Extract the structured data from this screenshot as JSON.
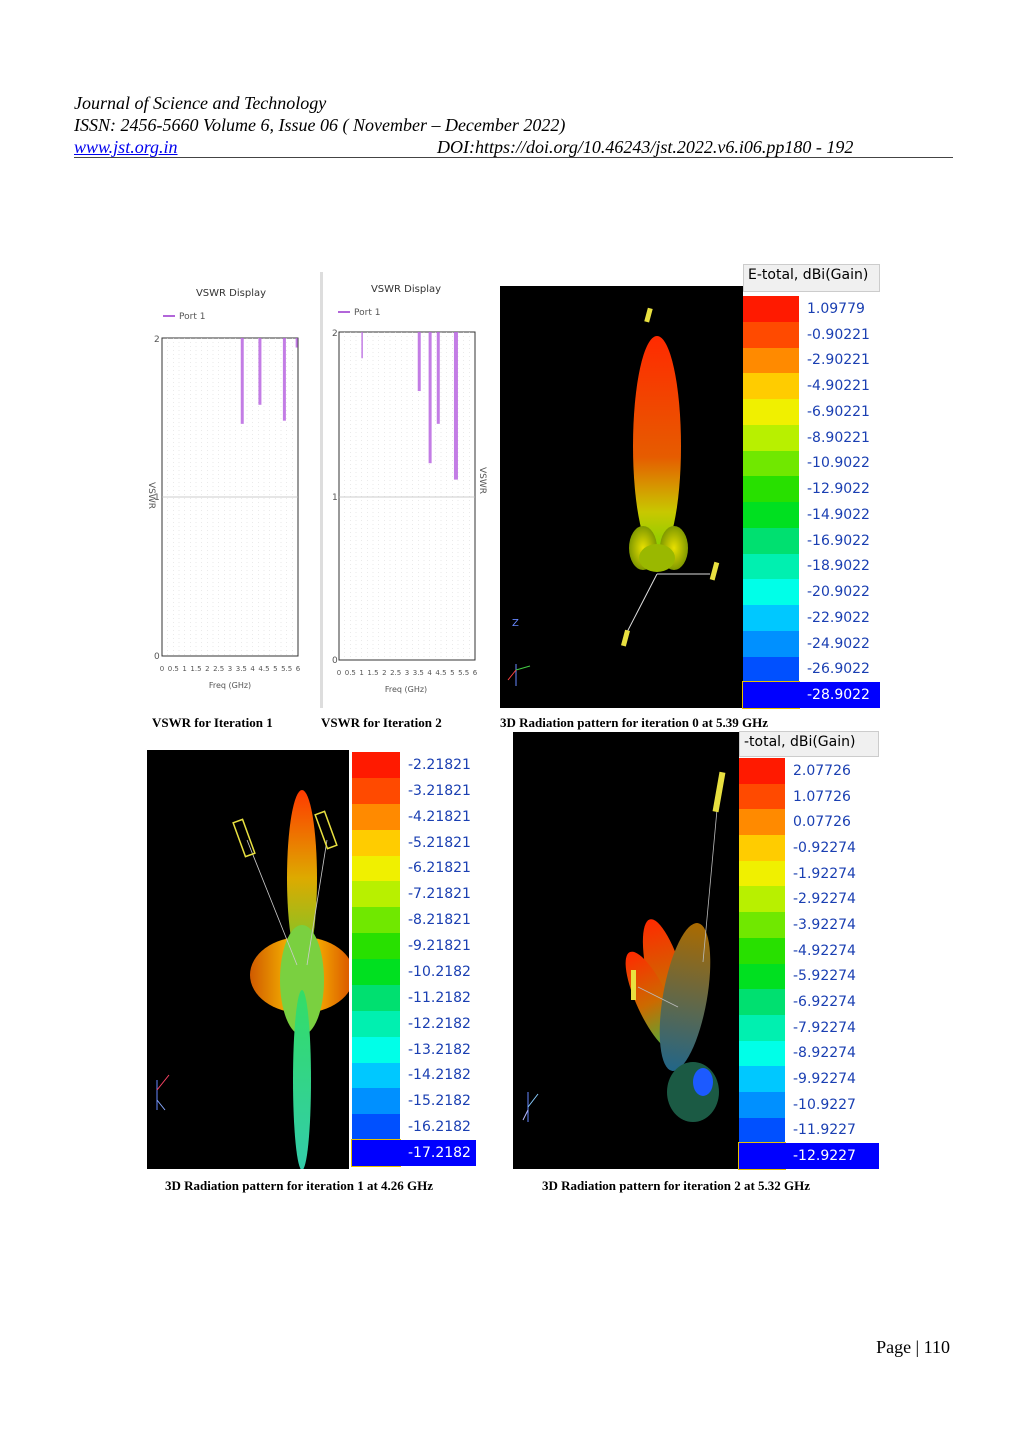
{
  "header": {
    "journal": "Journal of Science and Technology",
    "issn": "ISSN: 2456-5660 Volume 6, Issue 06 ( November – December 2022)",
    "website": "www.jst.org.in",
    "doi": "DOI:https://doi.org/10.46243/jst.2022.v6.i06.pp180 - 192"
  },
  "figures": {
    "vswr1": {
      "caption": "VSWR for Iteration 1",
      "title": "VSWR Display",
      "legend": "Port 1",
      "ylabel": "VSWR",
      "xlabel": "Freq (GHz)",
      "yticks": [
        "2",
        "1",
        "0"
      ],
      "xticks": [
        "0",
        "0.5",
        "1",
        "1.5",
        "2",
        "2.5",
        "3",
        "3.5",
        "4",
        "4.5",
        "5",
        "5.5",
        "6"
      ]
    },
    "vswr2": {
      "caption": "VSWR for Iteration 2",
      "title": "VSWR Display",
      "legend": "Port 1",
      "ylabel": "VSWR",
      "xlabel": "Freq (GHz)",
      "yticks": [
        "2",
        "1",
        "0"
      ],
      "xticks": [
        "0",
        "0.5",
        "1",
        "1.5",
        "2",
        "2.5",
        "3",
        "3.5",
        "4",
        "4.5",
        "5",
        "5.5",
        "6"
      ]
    },
    "rad0": {
      "caption": "3D Radiation pattern for iteration 0 at 5.39 GHz",
      "legend_title": "E-total, dBi(Gain)",
      "values": [
        "1.09779",
        "-0.90221",
        "-2.90221",
        "-4.90221",
        "-6.90221",
        "-8.90221",
        "-10.9022",
        "-12.9022",
        "-14.9022",
        "-16.9022",
        "-18.9022",
        "-20.9022",
        "-22.9022",
        "-24.9022",
        "-26.9022",
        "-28.9022"
      ],
      "axis_label": "Z"
    },
    "rad1": {
      "caption": "3D Radiation pattern for iteration 1 at 4.26 GHz",
      "values": [
        "-2.21821",
        "-3.21821",
        "-4.21821",
        "-5.21821",
        "-6.21821",
        "-7.21821",
        "-8.21821",
        "-9.21821",
        "-10.2182",
        "-11.2182",
        "-12.2182",
        "-13.2182",
        "-14.2182",
        "-15.2182",
        "-16.2182",
        "-17.2182"
      ]
    },
    "rad2": {
      "caption": "3D Radiation pattern for iteration 2 at 5.32 GHz",
      "legend_title": "-total, dBi(Gain)",
      "values": [
        "2.07726",
        "1.07726",
        "0.07726",
        "-0.92274",
        "-1.92274",
        "-2.92274",
        "-3.92274",
        "-4.92274",
        "-5.92274",
        "-6.92274",
        "-7.92274",
        "-8.92274",
        "-9.92274",
        "-10.9227",
        "-11.9227",
        "-12.9227"
      ]
    }
  },
  "colorscale": [
    "#ff1a00",
    "#ff4a00",
    "#ff8a00",
    "#ffcc00",
    "#f0f000",
    "#b8f000",
    "#70e800",
    "#28e000",
    "#00e020",
    "#00e070",
    "#00f0b0",
    "#00ffe8",
    "#00c8ff",
    "#0090ff",
    "#0050ff",
    "#0000ff"
  ],
  "footer": {
    "page": "Page | 110"
  }
}
